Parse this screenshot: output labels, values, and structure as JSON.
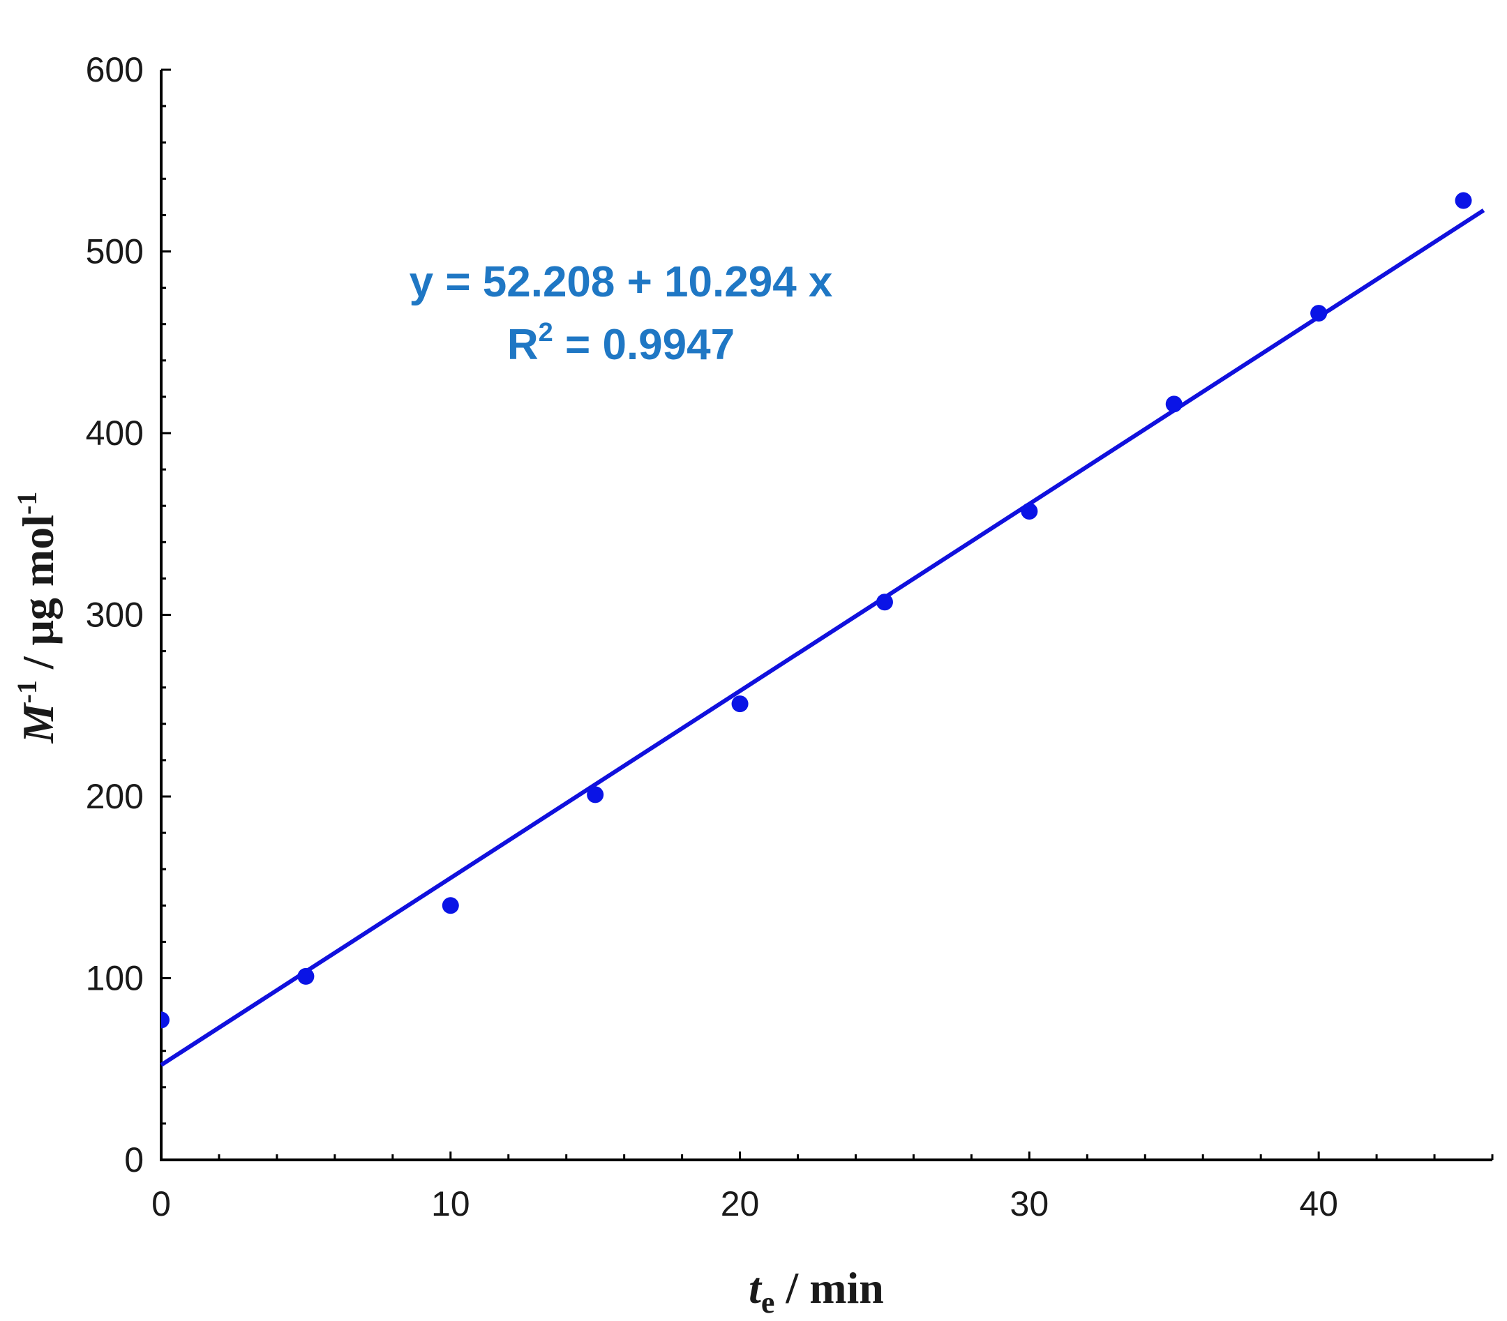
{
  "chart_data": {
    "type": "scatter",
    "xlabel": {
      "main": "t",
      "subscript": "e",
      "unit": " / min"
    },
    "ylabel": {
      "main": "M",
      "superscript": "-1",
      "unit": " / μg mol",
      "unit_superscript": "-1"
    },
    "xlim": [
      0,
      46
    ],
    "ylim": [
      0,
      600
    ],
    "x_ticks": [
      "0",
      "10",
      "20",
      "30",
      "40"
    ],
    "x_tick_values": [
      0,
      10,
      20,
      30,
      40
    ],
    "y_ticks": [
      "0",
      "100",
      "200",
      "300",
      "400",
      "500",
      "600"
    ],
    "y_tick_values": [
      0,
      100,
      200,
      300,
      400,
      500,
      600
    ],
    "x_minor_step": 2,
    "y_minor_step": 20,
    "grid": false,
    "series": [
      {
        "x": [
          0,
          5,
          10,
          15,
          20,
          25,
          30,
          35,
          40,
          45
        ],
        "y": [
          77,
          101,
          140,
          201,
          251,
          307,
          357,
          416,
          466,
          528
        ]
      }
    ],
    "trendline": {
      "intercept": 52.208,
      "slope": 10.294,
      "x_range": [
        0,
        45.7
      ]
    },
    "annotation": {
      "equation": "y = 52.208 + 10.294 x",
      "r_squared_prefix": "R",
      "r_squared_superscript": "2",
      "r_squared_value": " = 0.9947"
    },
    "colors": {
      "points": "#0a14e6",
      "line": "#1010dd",
      "annotation": "#1f77c4",
      "axis": "#000000"
    }
  }
}
